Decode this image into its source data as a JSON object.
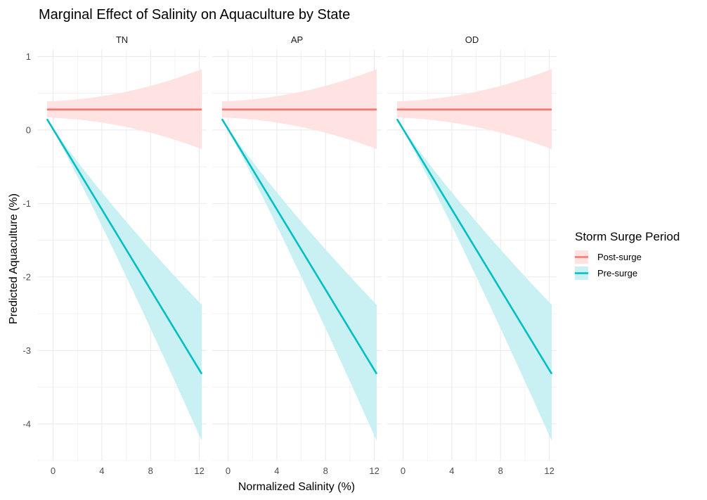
{
  "chart_data": {
    "type": "line",
    "title": "Marginal Effect of Salinity on Aquaculture by State",
    "xlabel": "Normalized Salinity (%)",
    "ylabel": "Predicted Aquaculture (%)",
    "xlim": [
      -1.3,
      12.6
    ],
    "ylim": [
      -4.5,
      1.1
    ],
    "x_ticks": [
      0,
      4,
      8,
      12
    ],
    "x_tick_labels": [
      "0",
      "4",
      "8",
      "12"
    ],
    "y_ticks": [
      1,
      0,
      -1,
      -2,
      -3,
      -4
    ],
    "y_tick_labels": [
      "1",
      "0",
      "-1",
      "-2",
      "-3",
      "-4"
    ],
    "grid": true,
    "legend": {
      "title": "Storm Surge Period",
      "placement": "right",
      "entries": [
        "Post-surge",
        "Pre-surge"
      ]
    },
    "colors": {
      "post_line": "#F8766D",
      "post_fill": "#FFE3E2",
      "pre_line": "#00BFC4",
      "pre_fill": "#C9F0F2",
      "grid": "#EBEBEB"
    },
    "panels": [
      {
        "label": "TN",
        "series": [
          {
            "name": "Post-surge",
            "x": [
              -0.5,
              12.2
            ],
            "y": [
              0.28,
              0.28
            ],
            "lower": [
              0.17,
              -0.26
            ],
            "upper": [
              0.39,
              0.83
            ]
          },
          {
            "name": "Pre-surge",
            "x": [
              -0.5,
              12.2
            ],
            "y": [
              0.15,
              -3.32
            ],
            "lower": [
              0.15,
              -4.23
            ],
            "upper": [
              0.15,
              -2.38
            ]
          }
        ]
      },
      {
        "label": "AP",
        "series": [
          {
            "name": "Post-surge",
            "x": [
              -0.5,
              12.2
            ],
            "y": [
              0.28,
              0.28
            ],
            "lower": [
              0.17,
              -0.26
            ],
            "upper": [
              0.39,
              0.83
            ]
          },
          {
            "name": "Pre-surge",
            "x": [
              -0.5,
              12.2
            ],
            "y": [
              0.15,
              -3.32
            ],
            "lower": [
              0.15,
              -4.23
            ],
            "upper": [
              0.15,
              -2.38
            ]
          }
        ]
      },
      {
        "label": "OD",
        "series": [
          {
            "name": "Post-surge",
            "x": [
              -0.5,
              12.2
            ],
            "y": [
              0.28,
              0.28
            ],
            "lower": [
              0.17,
              -0.26
            ],
            "upper": [
              0.39,
              0.83
            ]
          },
          {
            "name": "Pre-surge",
            "x": [
              -0.5,
              12.2
            ],
            "y": [
              0.15,
              -3.32
            ],
            "lower": [
              0.15,
              -4.23
            ],
            "upper": [
              0.15,
              -2.38
            ]
          }
        ]
      }
    ]
  }
}
